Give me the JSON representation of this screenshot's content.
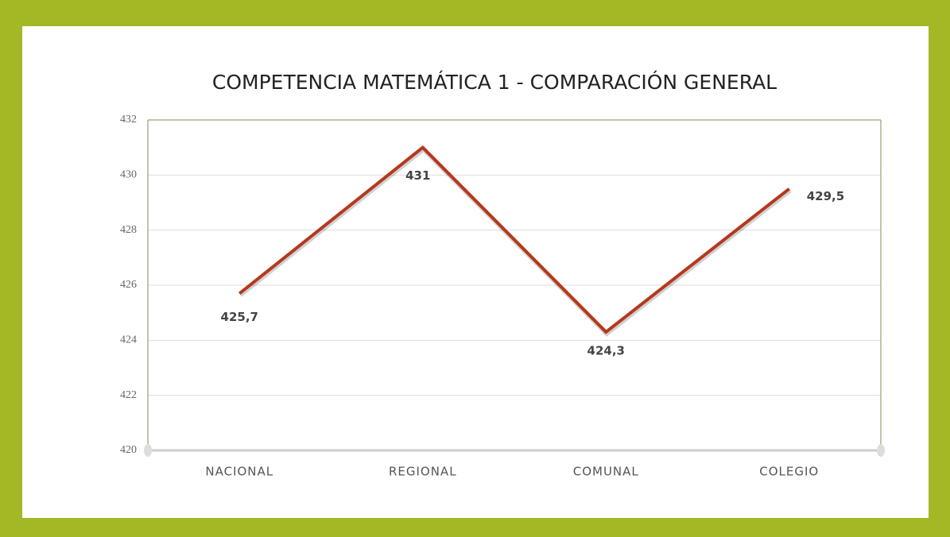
{
  "chart_data": {
    "type": "line",
    "title": "COMPETENCIA MATEMÁTICA 1 -  COMPARACIÓN GENERAL",
    "categories": [
      "NACIONAL",
      "REGIONAL",
      "COMUNAL",
      "COLEGIO"
    ],
    "values": [
      425.7,
      431,
      424.3,
      429.5
    ],
    "value_labels": [
      "425,7",
      "431",
      "424,3",
      "429,5"
    ],
    "color": "#b5381e",
    "ylim": [
      420,
      432
    ],
    "yticks": [
      420,
      422,
      424,
      426,
      428,
      430,
      432
    ],
    "grid": true
  }
}
